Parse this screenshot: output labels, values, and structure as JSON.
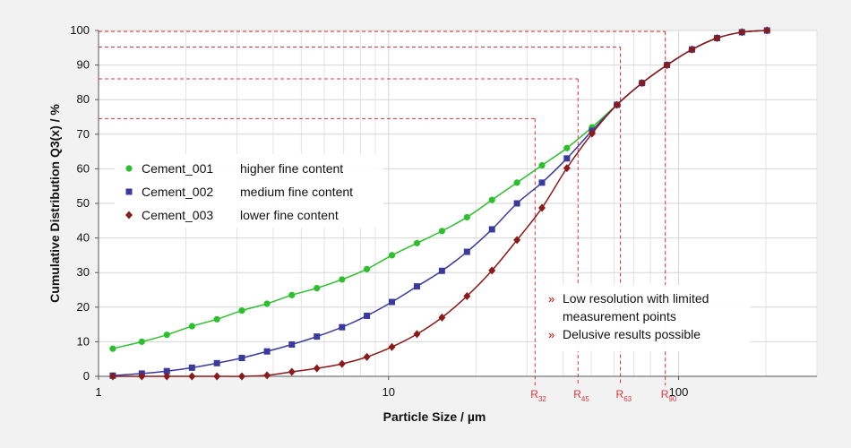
{
  "chart_data": {
    "type": "line",
    "xlabel": "Particle Size / µm",
    "ylabel": "Cumulative Distribution Q3(x) / %",
    "xscale": "log",
    "xlim": [
      1,
      300
    ],
    "ylim": [
      0,
      100
    ],
    "x_ticks": [
      "1",
      "10",
      "100"
    ],
    "y_ticks": [
      "0",
      "10",
      "20",
      "30",
      "40",
      "50",
      "60",
      "70",
      "80",
      "90",
      "100"
    ],
    "grid": true,
    "legend_position": "left",
    "series": [
      {
        "name": "Cement_001",
        "description": "higher fine content",
        "color": "#2dbf2d",
        "marker": "circle",
        "x": [
          1.12,
          1.41,
          1.72,
          2.1,
          2.56,
          3.12,
          3.81,
          4.64,
          5.66,
          6.91,
          8.42,
          10.27,
          12.53,
          15.28,
          18.64,
          22.73,
          27.72,
          33.8,
          41.2,
          50.3,
          61.3,
          74.8,
          91.2,
          111.2,
          135.7,
          165.4,
          201.8
        ],
        "y": [
          8,
          10,
          12,
          14.5,
          16.5,
          19,
          21,
          23.5,
          25.5,
          28,
          31,
          35,
          38.5,
          42,
          46,
          51,
          56,
          61,
          66,
          72,
          78.5,
          84.8,
          90,
          94.5,
          97.8,
          99.5,
          100
        ]
      },
      {
        "name": "Cement_002",
        "description": "medium fine content",
        "color": "#3a3a9e",
        "marker": "square",
        "x": [
          1.12,
          1.41,
          1.72,
          2.1,
          2.56,
          3.12,
          3.81,
          4.64,
          5.66,
          6.91,
          8.42,
          10.27,
          12.53,
          15.28,
          18.64,
          22.73,
          27.72,
          33.8,
          41.2,
          50.3,
          61.3,
          74.8,
          91.2,
          111.2,
          135.7,
          165.4,
          201.8
        ],
        "y": [
          0.2,
          0.8,
          1.5,
          2.5,
          3.8,
          5.3,
          7.2,
          9.2,
          11.5,
          14.2,
          17.5,
          21.5,
          26,
          30.5,
          36,
          42.5,
          50,
          56,
          63,
          71,
          78.5,
          84.8,
          90,
          94.5,
          97.8,
          99.5,
          100
        ]
      },
      {
        "name": "Cement_003",
        "description": "lower fine content",
        "color": "#8b1a1a",
        "marker": "diamond",
        "x": [
          1.12,
          1.41,
          1.72,
          2.1,
          2.56,
          3.12,
          3.81,
          4.64,
          5.66,
          6.91,
          8.42,
          10.27,
          12.53,
          15.28,
          18.64,
          22.73,
          27.72,
          33.8,
          41.2,
          50.3,
          61.3,
          74.8,
          91.2,
          111.2,
          135.7,
          165.4,
          201.8
        ],
        "y": [
          0,
          0,
          0,
          0,
          0,
          0,
          0.3,
          1.3,
          2.3,
          3.6,
          5.6,
          8.5,
          12.2,
          17,
          23.2,
          30.6,
          39.4,
          48.7,
          60.2,
          70.2,
          78.5,
          84.8,
          90,
          94.5,
          97.8,
          99.5,
          100
        ]
      }
    ],
    "reference_lines": [
      {
        "label": "R",
        "sub": "32",
        "x": 32,
        "y": 74.5
      },
      {
        "label": "R",
        "sub": "45",
        "x": 45,
        "y": 86
      },
      {
        "label": "R",
        "sub": "63",
        "x": 63,
        "y": 95.2
      },
      {
        "label": "R",
        "sub": "90",
        "x": 90,
        "y": 99.7
      }
    ],
    "annotations": [
      {
        "bullet": "»",
        "lines": [
          "Low resolution with limited",
          "measurement points"
        ]
      },
      {
        "bullet": "»",
        "lines": [
          "Delusive results possible"
        ]
      }
    ]
  }
}
